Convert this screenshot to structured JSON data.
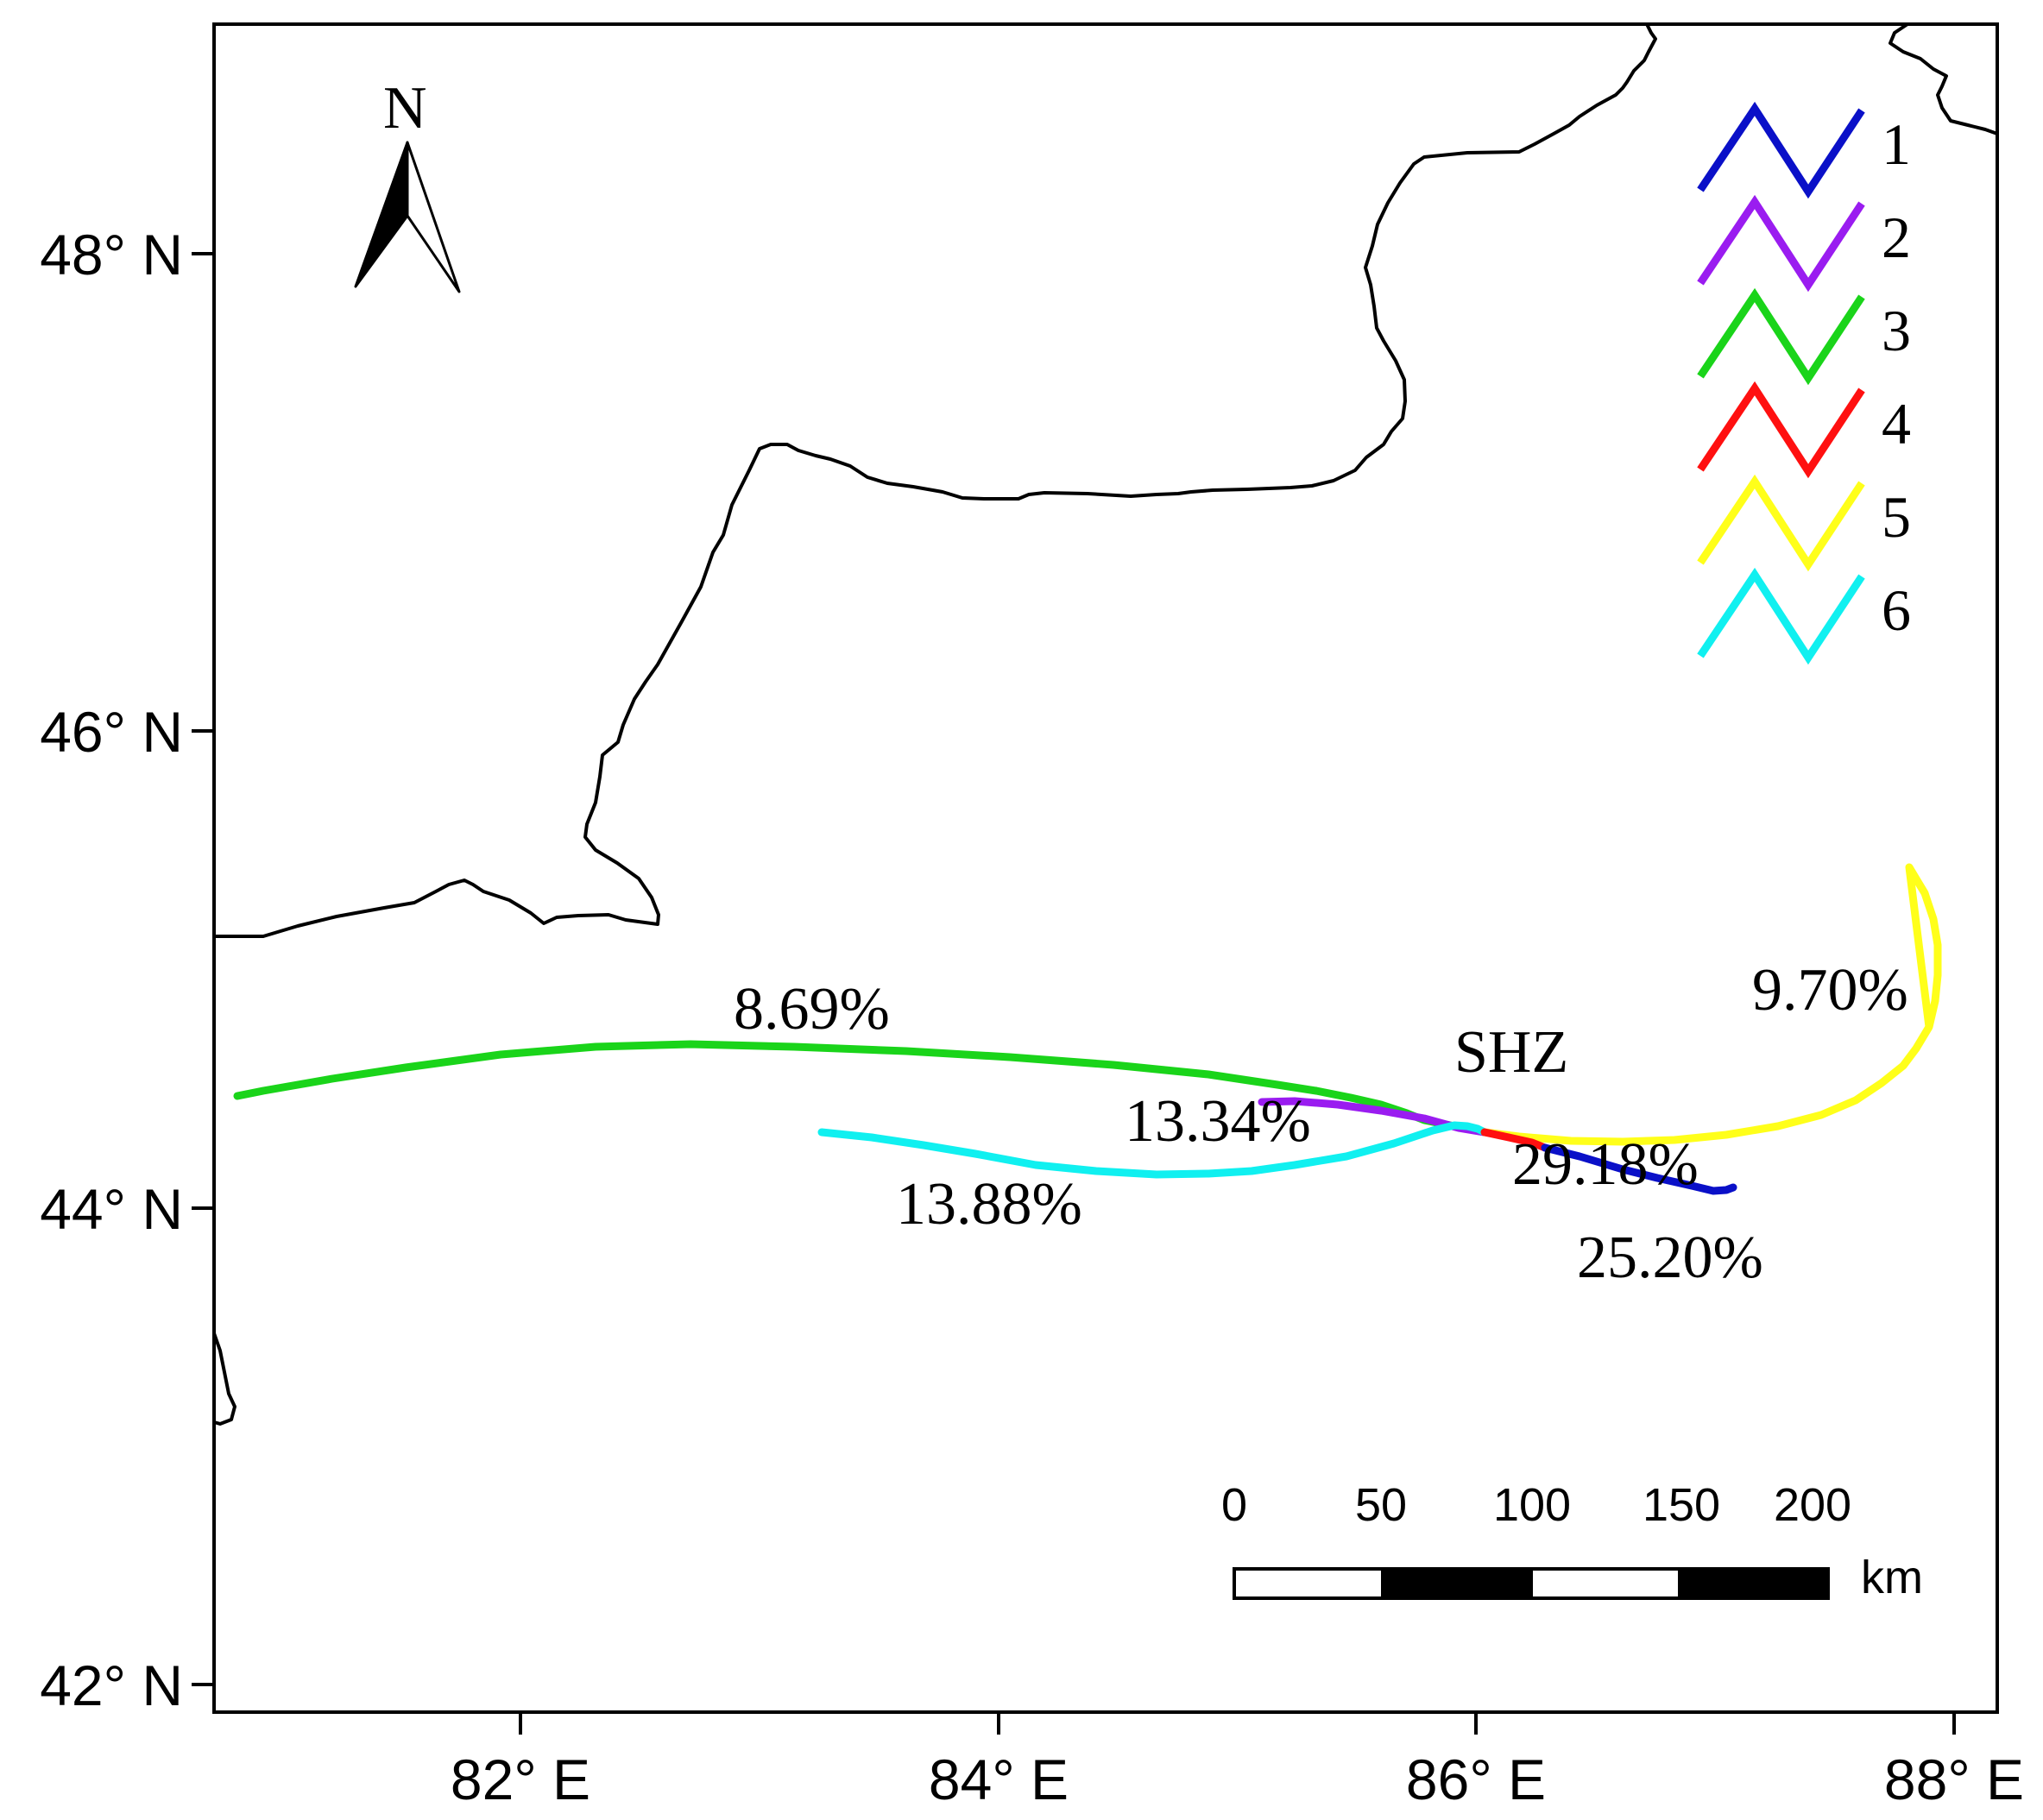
{
  "axes": {
    "lat_ticks": [
      "48° N",
      "46° N",
      "44° N",
      "42° N"
    ],
    "lon_ticks": [
      "82° E",
      "84° E",
      "86° E",
      "88° E"
    ]
  },
  "north_arrow": {
    "label": "N"
  },
  "station": {
    "label": "SHZ"
  },
  "legend": {
    "items": [
      {
        "label": "1",
        "color": "#0a10c8"
      },
      {
        "label": "2",
        "color": "#9a1cf0"
      },
      {
        "label": "3",
        "color": "#1ad41a"
      },
      {
        "label": "4",
        "color": "#ff1010"
      },
      {
        "label": "5",
        "color": "#ffff1a"
      },
      {
        "label": "6",
        "color": "#10f0f0"
      }
    ]
  },
  "clusters": [
    {
      "id": "1",
      "percent": "25.20%"
    },
    {
      "id": "2",
      "percent": "13.34%"
    },
    {
      "id": "3",
      "percent": "8.69%"
    },
    {
      "id": "4",
      "percent": "29.18%"
    },
    {
      "id": "5",
      "percent": "9.70%"
    },
    {
      "id": "6",
      "percent": "13.88%"
    }
  ],
  "scale_bar": {
    "ticks": [
      "0",
      "50",
      "100",
      "150",
      "200"
    ],
    "unit": "km"
  }
}
